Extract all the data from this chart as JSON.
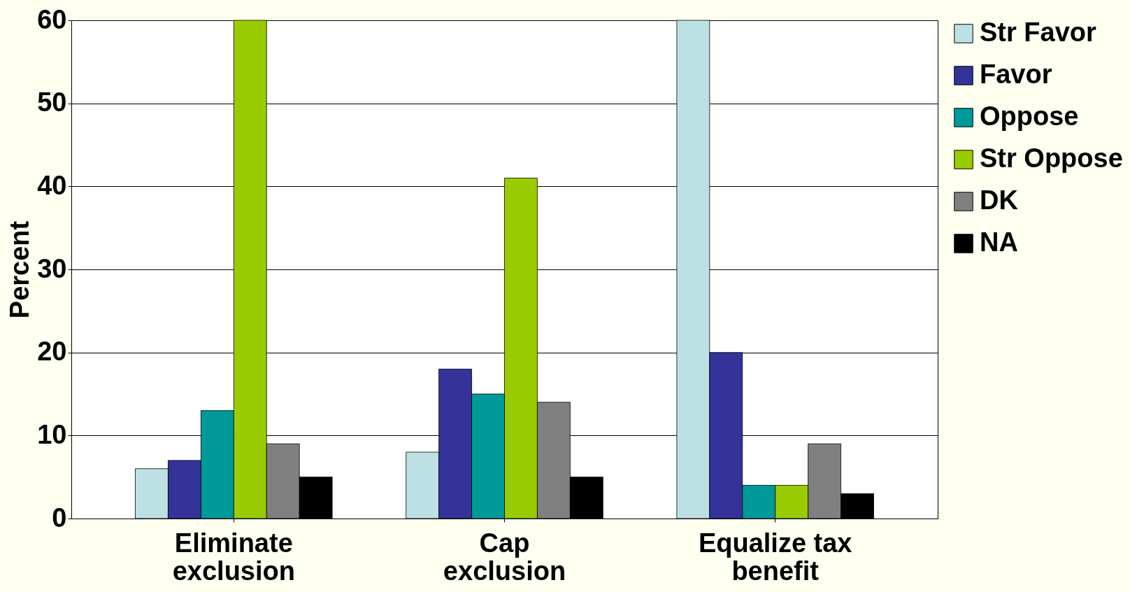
{
  "chart_data": {
    "type": "bar",
    "ylabel": "Percent",
    "categories": [
      "Eliminate exclusion",
      "Cap exclusion",
      "Equalize tax benefit"
    ],
    "series": [
      {
        "name": "Str Favor",
        "color": "#bde0e4",
        "values": [
          6,
          8,
          60
        ]
      },
      {
        "name": "Favor",
        "color": "#333399",
        "values": [
          7,
          18,
          20
        ]
      },
      {
        "name": "Oppose",
        "color": "#009999",
        "values": [
          13,
          15,
          4
        ]
      },
      {
        "name": "Str Oppose",
        "color": "#99cc00",
        "values": [
          60,
          41,
          4
        ]
      },
      {
        "name": "DK",
        "color": "#808080",
        "values": [
          9,
          14,
          9
        ]
      },
      {
        "name": "NA",
        "color": "#000000",
        "values": [
          5,
          5,
          3
        ]
      }
    ],
    "ylim": [
      0,
      60
    ],
    "yticks": [
      0,
      10,
      20,
      30,
      40,
      50,
      60
    ],
    "grid": "y",
    "legend": "right"
  }
}
